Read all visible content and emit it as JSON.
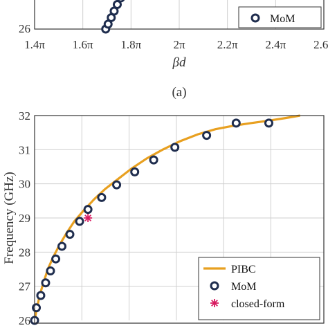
{
  "chart_data": [
    {
      "type": "scatter",
      "panel": "top",
      "title": "",
      "xlabel": "βd",
      "ylabel": "",
      "x_ticks": [
        "1.4π",
        "1.6π",
        "1.8π",
        "2π",
        "2.2π",
        "2.4π",
        "2.6π"
      ],
      "xlim": [
        1.4,
        2.6
      ],
      "y_ticks": [
        "26"
      ],
      "ylim": [
        26,
        32
      ],
      "grid": true,
      "legend_position": "bottom-right",
      "series": [
        {
          "name": "MoM",
          "marker": "circle",
          "color": "#1f2d4e",
          "x": [
            1.695,
            1.705,
            1.718,
            1.73,
            1.743,
            1.757
          ],
          "y": [
            26.0,
            26.15,
            26.35,
            26.55,
            26.75,
            26.95
          ]
        }
      ],
      "curve": {
        "color": "#e8a020",
        "x": [
          1.693,
          1.71,
          1.73,
          1.75,
          1.765
        ],
        "y": [
          26.0,
          26.25,
          26.55,
          26.85,
          27.1
        ]
      },
      "caption": "(a)"
    },
    {
      "type": "line",
      "panel": "bottom",
      "title": "",
      "xlabel": "",
      "ylabel": "Frequency (GHz)",
      "ylim": [
        26,
        32
      ],
      "y_ticks": [
        "26",
        "27",
        "28",
        "29",
        "30",
        "31",
        "32"
      ],
      "xlim": [
        0,
        6
      ],
      "grid": true,
      "legend_position": "bottom-right",
      "series": [
        {
          "name": "PIBC",
          "kind": "line",
          "color": "#e8a020",
          "x": [
            0.0,
            0.05,
            0.12,
            0.2,
            0.3,
            0.42,
            0.56,
            0.72,
            0.9,
            1.1,
            1.35,
            1.6,
            1.9,
            2.2,
            2.55,
            2.9,
            3.3,
            3.7,
            4.1,
            4.5,
            4.9,
            5.3,
            5.7,
            6.02
          ],
          "y": [
            26.0,
            26.35,
            26.75,
            27.1,
            27.5,
            27.85,
            28.2,
            28.55,
            28.9,
            29.2,
            29.55,
            29.85,
            30.15,
            30.45,
            30.75,
            31.0,
            31.25,
            31.45,
            31.6,
            31.7,
            31.78,
            31.85,
            31.93,
            32.0
          ]
        },
        {
          "name": "MoM",
          "kind": "scatter",
          "marker": "circle",
          "color": "#1f2d4e",
          "x": [
            0.0,
            0.04,
            0.14,
            0.25,
            0.36,
            0.48,
            0.62,
            0.8,
            1.02,
            1.21,
            1.52,
            1.86,
            2.27,
            2.7,
            3.18,
            3.9,
            4.57,
            5.31
          ],
          "y": [
            26.0,
            26.37,
            26.73,
            27.1,
            27.45,
            27.8,
            28.17,
            28.52,
            28.9,
            29.25,
            29.6,
            29.97,
            30.35,
            30.7,
            31.07,
            31.42,
            31.78,
            31.78
          ]
        },
        {
          "name": "closed-form",
          "kind": "scatter",
          "marker": "asterisk",
          "color": "#d81b60",
          "x": [
            1.21
          ],
          "y": [
            29.0
          ]
        }
      ]
    }
  ],
  "legend": {
    "top": [
      "MoM"
    ],
    "bottom": [
      "PIBC",
      "MoM",
      "closed-form"
    ]
  },
  "colors": {
    "pibc": "#e8a020",
    "mom": "#1f2d4e",
    "closed_form": "#d81b60",
    "grid": "#cfcfcf",
    "axis": "#333333"
  }
}
